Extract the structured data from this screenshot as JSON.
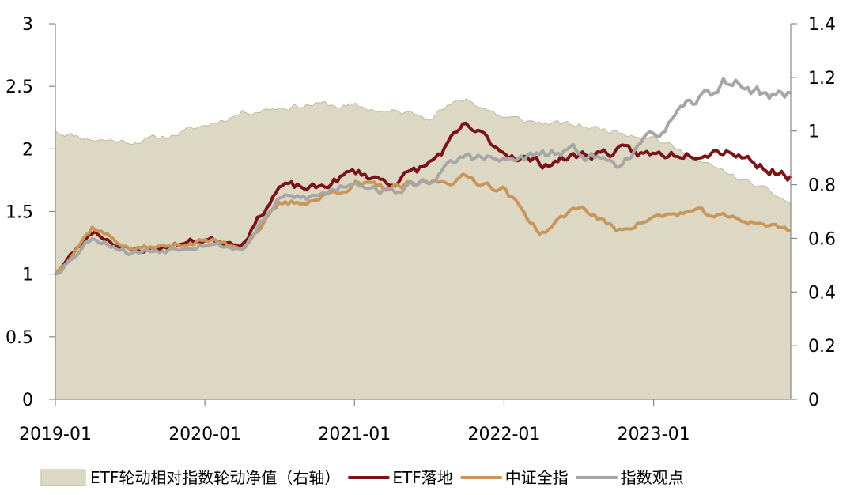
{
  "chart_data": {
    "type": "line",
    "x": [
      "2019-01",
      "2019-04",
      "2019-07",
      "2019-10",
      "2020-01",
      "2020-04",
      "2020-07",
      "2020-10",
      "2021-01",
      "2021-04",
      "2021-07",
      "2021-10",
      "2022-01",
      "2022-04",
      "2022-07",
      "2022-10",
      "2023-01",
      "2023-04",
      "2023-07",
      "2023-10",
      "2023-12"
    ],
    "x_tick_labels": [
      "2019-01",
      "2020-01",
      "2021-01",
      "2022-01",
      "2023-01"
    ],
    "y_left": {
      "ylim": [
        0,
        3
      ],
      "ticks": [
        "0",
        "0.5",
        "1",
        "1.5",
        "2",
        "2.5",
        "3"
      ]
    },
    "y_right": {
      "ylim": [
        0,
        1.4
      ],
      "ticks": [
        "0",
        "0.2",
        "0.4",
        "0.6",
        "0.8",
        "1",
        "1.2",
        "1.4"
      ]
    },
    "grid": false,
    "legend_position": "bottom",
    "series": [
      {
        "name": "ETF轮动相对指数轮动净值（右轴）",
        "type": "area",
        "axis": "right",
        "color": "#ddd8c4",
        "edge_color": "#bfb99f",
        "values": [
          1.0,
          0.97,
          0.96,
          0.98,
          1.02,
          1.07,
          1.09,
          1.1,
          1.09,
          1.07,
          1.06,
          1.12,
          1.05,
          1.03,
          1.02,
          1.0,
          0.98,
          0.9,
          0.84,
          0.78,
          0.73
        ]
      },
      {
        "name": "ETF落地",
        "type": "line",
        "axis": "left",
        "color": "#7a1216",
        "values": [
          1.0,
          1.35,
          1.18,
          1.22,
          1.28,
          1.25,
          1.7,
          1.68,
          1.82,
          1.73,
          1.88,
          2.18,
          1.98,
          1.88,
          1.95,
          1.98,
          1.95,
          1.98,
          2.0,
          1.85,
          1.78
        ]
      },
      {
        "name": "中证全指",
        "type": "line",
        "axis": "left",
        "color": "#c8965a",
        "values": [
          1.0,
          1.38,
          1.2,
          1.22,
          1.27,
          1.22,
          1.55,
          1.6,
          1.72,
          1.68,
          1.73,
          1.77,
          1.68,
          1.32,
          1.55,
          1.35,
          1.45,
          1.5,
          1.45,
          1.4,
          1.35
        ]
      },
      {
        "name": "指数观点",
        "type": "line",
        "axis": "left",
        "color": "#a6a6a6",
        "values": [
          1.0,
          1.3,
          1.17,
          1.2,
          1.25,
          1.2,
          1.6,
          1.62,
          1.75,
          1.65,
          1.75,
          1.95,
          1.9,
          1.95,
          1.98,
          1.88,
          2.1,
          2.35,
          2.55,
          2.43,
          2.43
        ]
      }
    ]
  }
}
